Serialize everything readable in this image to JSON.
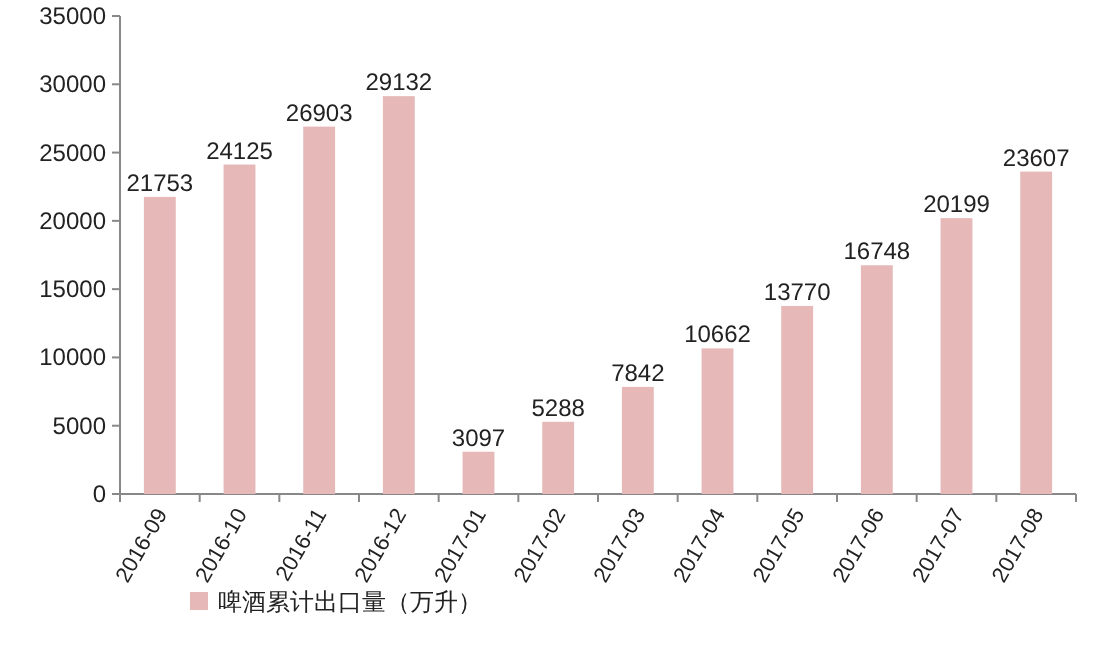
{
  "chart_data": {
    "type": "bar",
    "categories": [
      "2016-09",
      "2016-10",
      "2016-11",
      "2016-12",
      "2017-01",
      "2017-02",
      "2017-03",
      "2017-04",
      "2017-05",
      "2017-06",
      "2017-07",
      "2017-08"
    ],
    "series": [
      {
        "name": "啤酒累计出口量（万升）",
        "color": "#e6b9b8",
        "values": [
          21753,
          24125,
          26903,
          29132,
          3097,
          5288,
          7842,
          10662,
          13770,
          16748,
          20199,
          23607
        ]
      }
    ],
    "ylim": [
      0,
      35000
    ],
    "yticks": [
      0,
      5000,
      10000,
      15000,
      20000,
      25000,
      30000,
      35000
    ],
    "data_labels": true,
    "legend": "bottom left",
    "grid": false
  }
}
